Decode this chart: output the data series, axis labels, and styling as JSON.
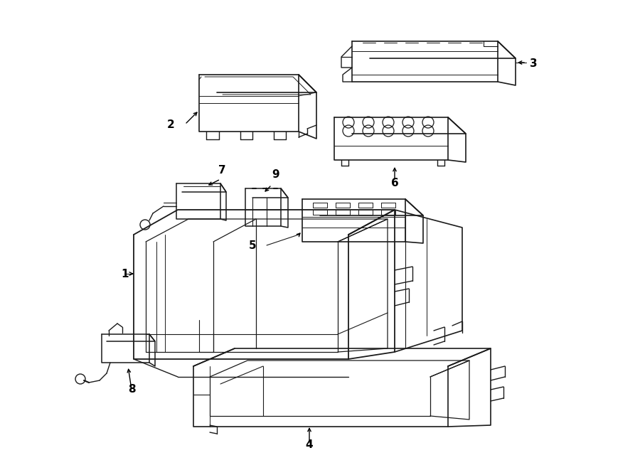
{
  "background_color": "#ffffff",
  "line_color": "#1a1a1a",
  "label_color": "#000000",
  "fig_width": 9.0,
  "fig_height": 6.61,
  "dpi": 100
}
